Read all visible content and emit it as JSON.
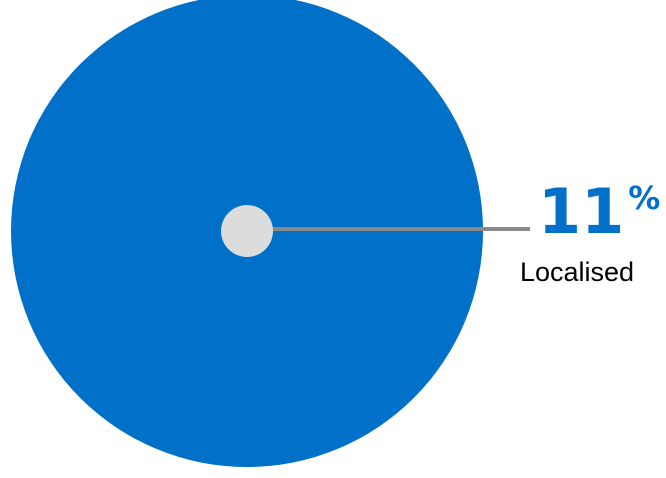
{
  "chart_data": {
    "type": "callout",
    "categories": [
      "Localised"
    ],
    "values": [
      11
    ],
    "value_labels": [
      "11%"
    ],
    "color": "#0070c8"
  }
}
